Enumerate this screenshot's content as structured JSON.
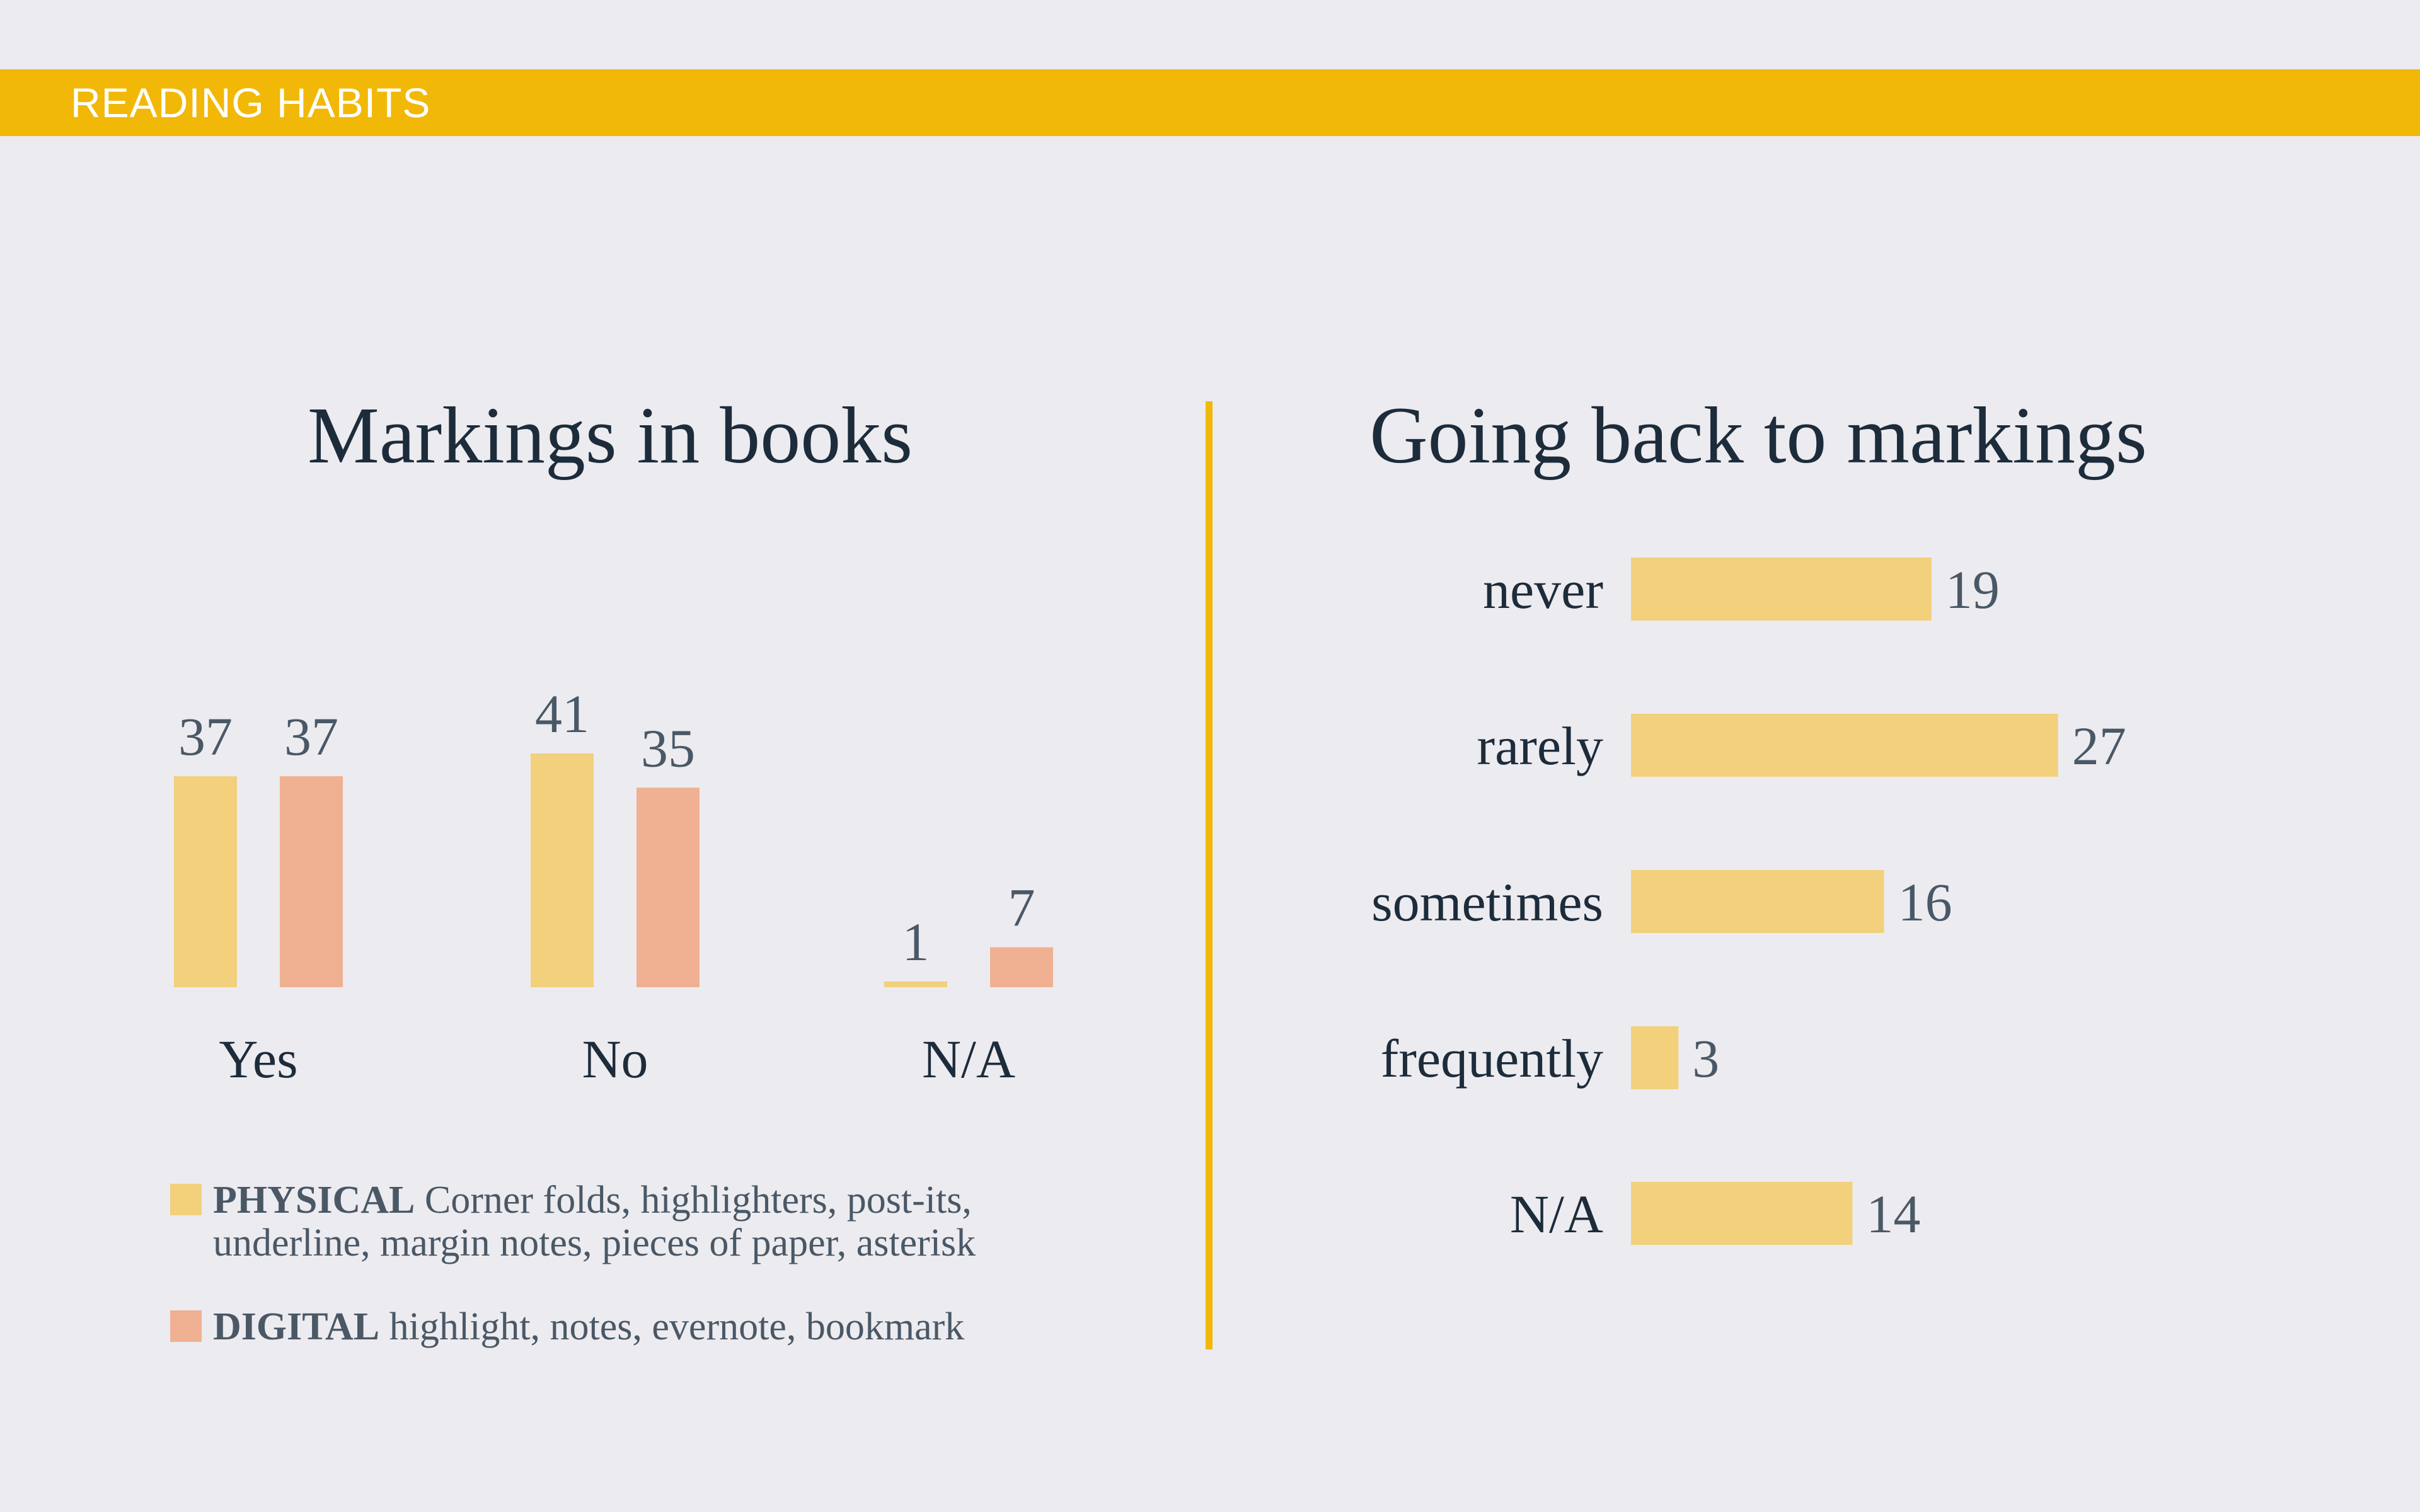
{
  "header": {
    "label": "READING HABITS"
  },
  "colors": {
    "banner": "#F2B807",
    "physical": "#F2D07C",
    "digital": "#F0B092",
    "divider": "#F2B807",
    "background": "#ECEBF0"
  },
  "chart_data": [
    {
      "type": "bar",
      "title": "Markings in books",
      "categories": [
        "Yes",
        "No",
        "N/A"
      ],
      "series": [
        {
          "name": "PHYSICAL",
          "values": [
            37,
            41,
            1
          ]
        },
        {
          "name": "DIGITAL",
          "values": [
            37,
            35,
            7
          ]
        }
      ],
      "legend": [
        {
          "name": "PHYSICAL",
          "lines": [
            "Corner folds, highlighters, post-its,",
            "underline, margin notes, pieces of paper, asterisk"
          ]
        },
        {
          "name": "DIGITAL",
          "lines": [
            "highlight, notes, evernote, bookmark"
          ]
        }
      ],
      "legend_position": "bottom-left",
      "grid": false
    },
    {
      "type": "bar",
      "orientation": "horizontal",
      "title": "Going back to markings",
      "categories": [
        "never",
        "rarely",
        "sometimes",
        "frequently",
        "N/A"
      ],
      "values": [
        19,
        27,
        16,
        3,
        14
      ],
      "grid": false
    }
  ]
}
